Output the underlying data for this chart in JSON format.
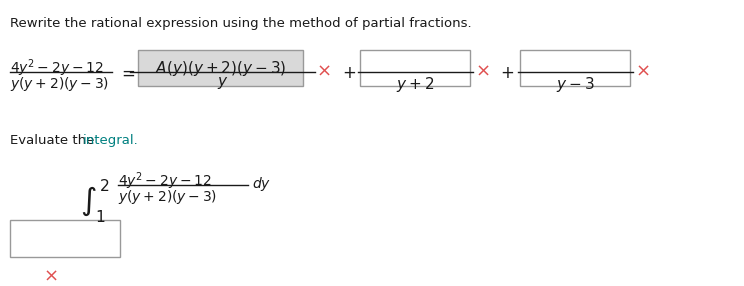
{
  "bg_color": "#ffffff",
  "text_color_dark": "#1a1a1a",
  "text_color_blue": "#2e74b5",
  "text_color_teal": "#008080",
  "text_color_red": "#cc3333",
  "math_color": "#1a1a1a",
  "instruction_line1": "Rewrite the rational expression using the method of partial fractions.",
  "instruction_line2": "Evaluate the integral.",
  "box_fill_color": "#d9d9d9",
  "box_edge_color": "#999999",
  "empty_box_fill": "#ffffff",
  "x_mark_color": "#e05050"
}
